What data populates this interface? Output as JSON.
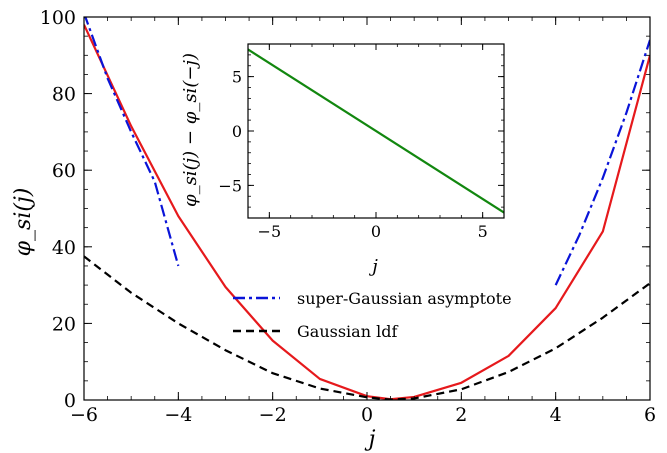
{
  "chart_data": [
    {
      "type": "line",
      "xlabel": "j",
      "ylabel": "φ_si(j)",
      "xlim": [
        -6,
        6
      ],
      "ylim": [
        0,
        100
      ],
      "xticks": [
        -6,
        -4,
        -2,
        0,
        2,
        4,
        6
      ],
      "xtick_labels": [
        "−6",
        "−4",
        "−2",
        "0",
        "2",
        "4",
        "6"
      ],
      "yticks": [
        0,
        20,
        40,
        60,
        80,
        100
      ],
      "ytick_labels": [
        "0",
        "20",
        "40",
        "60",
        "80",
        "100"
      ],
      "grid": false,
      "legend_position": "center-right",
      "series": [
        {
          "color": "#e6191c",
          "style": "solid",
          "points": [
            [
              -6,
              98
            ],
            [
              -5,
              71.5
            ],
            [
              -4,
              48
            ],
            [
              -3,
              29.5
            ],
            [
              -2,
              15.5
            ],
            [
              -1,
              5.5
            ],
            [
              0,
              1
            ],
            [
              0.5,
              0.2
            ],
            [
              1,
              0.8
            ],
            [
              2,
              4.5
            ],
            [
              3,
              11.5
            ],
            [
              4,
              24
            ],
            [
              5,
              44
            ],
            [
              6,
              90
            ]
          ]
        },
        {
          "name": "super-Gaussian asymptote",
          "color": "#0a14d8",
          "style": "dashdot",
          "segments": [
            [
              [
                -6,
                101
              ],
              [
                -5.5,
                84
              ],
              [
                -5,
                70
              ],
              [
                -4.5,
                57
              ],
              [
                -4,
                35
              ]
            ],
            [
              [
                4,
                30
              ],
              [
                4.5,
                43
              ],
              [
                5,
                58
              ],
              [
                5.5,
                75
              ],
              [
                6,
                94
              ]
            ]
          ]
        },
        {
          "name": "Gaussian ldf",
          "color": "#000000",
          "style": "dashed",
          "points": [
            [
              -6,
              37.5
            ],
            [
              -5,
              28
            ],
            [
              -4,
              20
            ],
            [
              -3,
              13
            ],
            [
              -2,
              7
            ],
            [
              -1,
              3
            ],
            [
              0,
              0.7
            ],
            [
              0.5,
              0.1
            ],
            [
              1,
              0.4
            ],
            [
              2,
              2.8
            ],
            [
              3,
              7.3
            ],
            [
              4,
              13.5
            ],
            [
              5,
              21.5
            ],
            [
              6,
              30.5
            ]
          ]
        }
      ]
    },
    {
      "type": "line",
      "xlabel": "j",
      "ylabel": "φ_si(j) − φ_si(−j)",
      "xlim": [
        -6,
        6
      ],
      "ylim": [
        -8,
        8
      ],
      "xticks": [
        -5,
        0,
        5
      ],
      "xtick_labels": [
        "−5",
        "0",
        "5"
      ],
      "yticks": [
        -5,
        0,
        5
      ],
      "ytick_labels": [
        "−5",
        "0",
        "5"
      ],
      "grid": false,
      "series": [
        {
          "color": "#12870f",
          "style": "solid",
          "points": [
            [
              -6,
              7.5
            ],
            [
              6,
              -7.5
            ]
          ]
        }
      ]
    }
  ]
}
